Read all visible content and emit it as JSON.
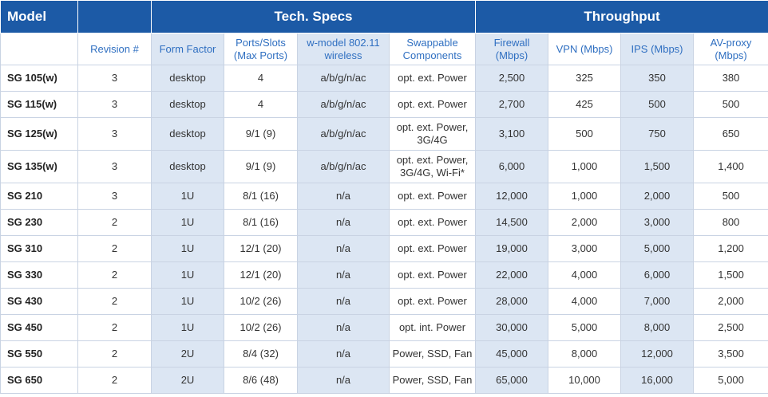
{
  "header": {
    "model": "Model",
    "tech_specs": "Tech. Specs",
    "throughput": "Throughput"
  },
  "columns": [
    "Revision #",
    "Form Factor",
    "Ports/Slots (Max Ports)",
    "w-model 802.11 wireless",
    "Swappable Components",
    "Firewall (Mbps)",
    "VPN (Mbps)",
    "IPS (Mbps)",
    "AV-proxy (Mbps)"
  ],
  "rows": [
    {
      "model": "SG 105(w)",
      "revision": "3",
      "form_factor": "desktop",
      "ports": "4",
      "wireless": "a/b/g/n/ac",
      "swappable": "opt. ext. Power",
      "firewall": "2,500",
      "vpn": "325",
      "ips": "350",
      "av_proxy": "380"
    },
    {
      "model": "SG 115(w)",
      "revision": "3",
      "form_factor": "desktop",
      "ports": "4",
      "wireless": "a/b/g/n/ac",
      "swappable": "opt. ext. Power",
      "firewall": "2,700",
      "vpn": "425",
      "ips": "500",
      "av_proxy": "500"
    },
    {
      "model": "SG 125(w)",
      "revision": "3",
      "form_factor": "desktop",
      "ports": "9/1 (9)",
      "wireless": "a/b/g/n/ac",
      "swappable": "opt. ext. Power, 3G/4G",
      "firewall": "3,100",
      "vpn": "500",
      "ips": "750",
      "av_proxy": "650"
    },
    {
      "model": "SG 135(w)",
      "revision": "3",
      "form_factor": "desktop",
      "ports": "9/1 (9)",
      "wireless": "a/b/g/n/ac",
      "swappable": "opt. ext. Power, 3G/4G, Wi-Fi*",
      "firewall": "6,000",
      "vpn": "1,000",
      "ips": "1,500",
      "av_proxy": "1,400"
    },
    {
      "model": "SG 210",
      "revision": "3",
      "form_factor": "1U",
      "ports": "8/1 (16)",
      "wireless": "n/a",
      "swappable": "opt. ext. Power",
      "firewall": "12,000",
      "vpn": "1,000",
      "ips": "2,000",
      "av_proxy": "500"
    },
    {
      "model": "SG 230",
      "revision": "2",
      "form_factor": "1U",
      "ports": "8/1 (16)",
      "wireless": "n/a",
      "swappable": "opt. ext. Power",
      "firewall": "14,500",
      "vpn": "2,000",
      "ips": "3,000",
      "av_proxy": "800"
    },
    {
      "model": "SG 310",
      "revision": "2",
      "form_factor": "1U",
      "ports": "12/1 (20)",
      "wireless": "n/a",
      "swappable": "opt. ext. Power",
      "firewall": "19,000",
      "vpn": "3,000",
      "ips": "5,000",
      "av_proxy": "1,200"
    },
    {
      "model": "SG 330",
      "revision": "2",
      "form_factor": "1U",
      "ports": "12/1 (20)",
      "wireless": "n/a",
      "swappable": "opt. ext. Power",
      "firewall": "22,000",
      "vpn": "4,000",
      "ips": "6,000",
      "av_proxy": "1,500"
    },
    {
      "model": "SG 430",
      "revision": "2",
      "form_factor": "1U",
      "ports": "10/2 (26)",
      "wireless": "n/a",
      "swappable": "opt. ext. Power",
      "firewall": "28,000",
      "vpn": "4,000",
      "ips": "7,000",
      "av_proxy": "2,000"
    },
    {
      "model": "SG 450",
      "revision": "2",
      "form_factor": "1U",
      "ports": "10/2 (26)",
      "wireless": "n/a",
      "swappable": "opt. int. Power",
      "firewall": "30,000",
      "vpn": "5,000",
      "ips": "8,000",
      "av_proxy": "2,500"
    },
    {
      "model": "SG 550",
      "revision": "2",
      "form_factor": "2U",
      "ports": "8/4 (32)",
      "wireless": "n/a",
      "swappable": "Power, SSD, Fan",
      "firewall": "45,000",
      "vpn": "8,000",
      "ips": "12,000",
      "av_proxy": "3,500"
    },
    {
      "model": "SG 650",
      "revision": "2",
      "form_factor": "2U",
      "ports": "8/6 (48)",
      "wireless": "n/a",
      "swappable": "Power, SSD, Fan",
      "firewall": "65,000",
      "vpn": "10,000",
      "ips": "16,000",
      "av_proxy": "5,000"
    }
  ],
  "colors": {
    "header_bg": "#1c5aa6",
    "header_text": "#ffffff",
    "subheader_text": "#2f6fc1",
    "shaded_cell": "#dce6f3",
    "grid_line": "#c9d3e3"
  }
}
